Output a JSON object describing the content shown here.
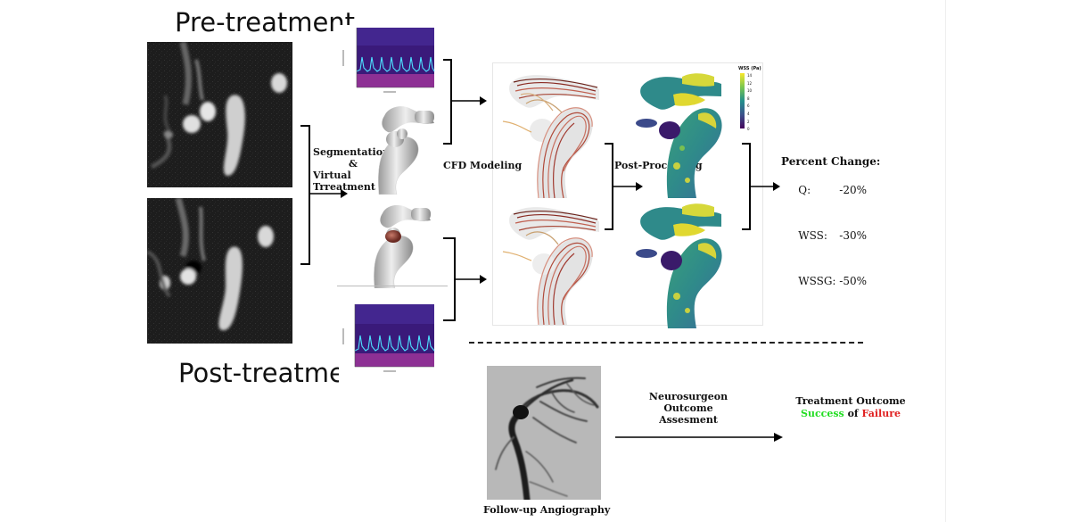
{
  "headings": {
    "pre": "Pre-treatment",
    "post": "Post-treatment"
  },
  "steps": {
    "segmentation": "Segmentation",
    "ampersand": "&",
    "virtual": "Virtual Trreatment",
    "cfd": "CFD Modeling",
    "post_processing": "Post-Processing"
  },
  "colorbar": {
    "title": "WSS (Pa)",
    "ticks": [
      "14",
      "12",
      "10",
      "8",
      "6",
      "4",
      "2",
      "0"
    ]
  },
  "percent_change": {
    "title": "Percent Change:",
    "rows": [
      {
        "label": "Q:",
        "value": "-20%"
      },
      {
        "label": "WSS:",
        "value": "-30%"
      },
      {
        "label": "WSSG:",
        "value": "-50%"
      }
    ]
  },
  "followup": {
    "caption": "Follow-up Angiography",
    "assessment_line1": "Neurosurgeon",
    "assessment_line2": "Outcome",
    "assessment_line3": "Assesment",
    "outcome_title": "Treatment Outcome",
    "success": "Success",
    "of": "of",
    "failure": "Failure",
    "success_color": "#22dd22",
    "failure_color": "#e02020"
  }
}
